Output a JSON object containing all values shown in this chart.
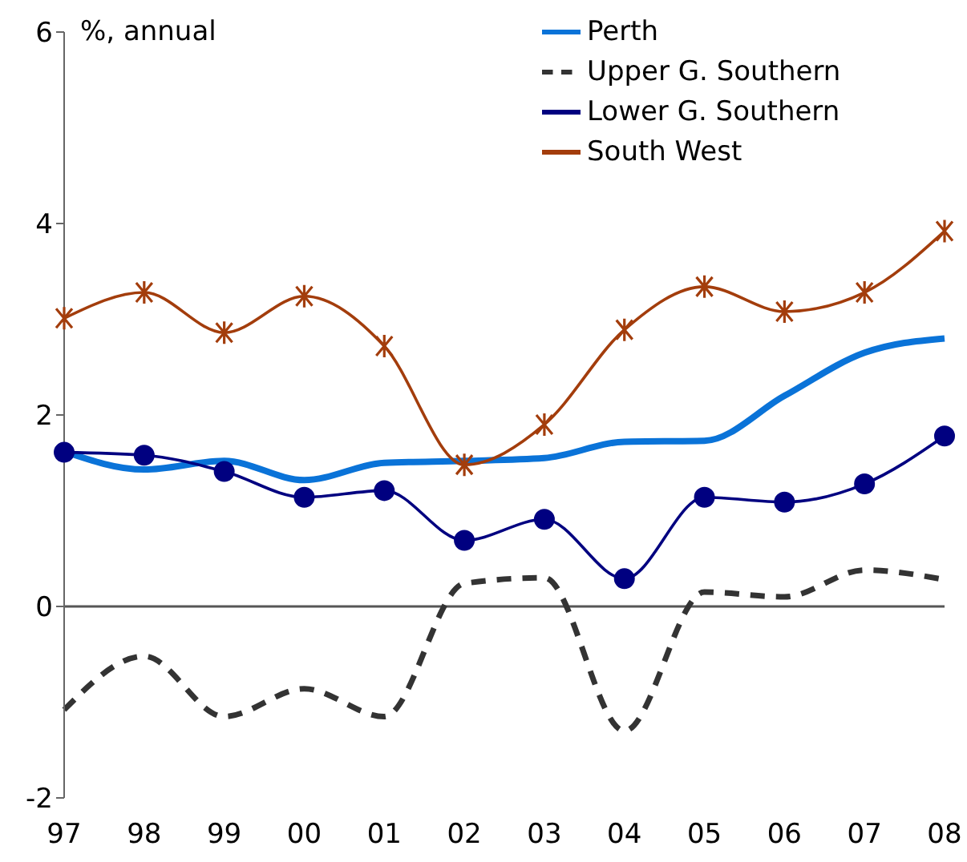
{
  "chart_data": {
    "type": "line",
    "ylabel": "%, annual",
    "categories": [
      "97",
      "98",
      "99",
      "00",
      "01",
      "02",
      "03",
      "04",
      "05",
      "06",
      "07",
      "08"
    ],
    "series": [
      {
        "name": "Perth",
        "color": "#0a73d8",
        "marker": "none",
        "line_style": "solid",
        "values": [
          1.62,
          1.43,
          1.52,
          1.32,
          1.5,
          1.52,
          1.55,
          1.72,
          1.73,
          2.2,
          2.65,
          2.8
        ]
      },
      {
        "name": "Upper G. Southern",
        "color": "#333333",
        "marker": "none",
        "line_style": "dashed",
        "values": [
          -1.08,
          -0.52,
          -1.15,
          -0.86,
          -1.15,
          0.24,
          0.3,
          -1.3,
          0.15,
          0.1,
          0.38,
          0.28
        ]
      },
      {
        "name": "Lower G. Southern",
        "color": "#000080",
        "marker": "circle",
        "line_style": "solid",
        "values": [
          1.61,
          1.58,
          1.41,
          1.14,
          1.21,
          0.69,
          0.91,
          0.29,
          1.14,
          1.09,
          1.28,
          1.78
        ]
      },
      {
        "name": "South West",
        "color": "#a33d0c",
        "marker": "cross",
        "line_style": "solid",
        "values": [
          3.01,
          3.28,
          2.86,
          3.24,
          2.72,
          1.48,
          1.9,
          2.89,
          3.34,
          3.08,
          3.28,
          3.92
        ]
      }
    ],
    "ylim": [
      -2,
      6
    ],
    "yticks": [
      -2,
      0,
      2,
      4,
      6
    ],
    "ref_lines": [
      {
        "axis": "y",
        "value": 0
      }
    ],
    "grid": false,
    "legend": "top right"
  }
}
